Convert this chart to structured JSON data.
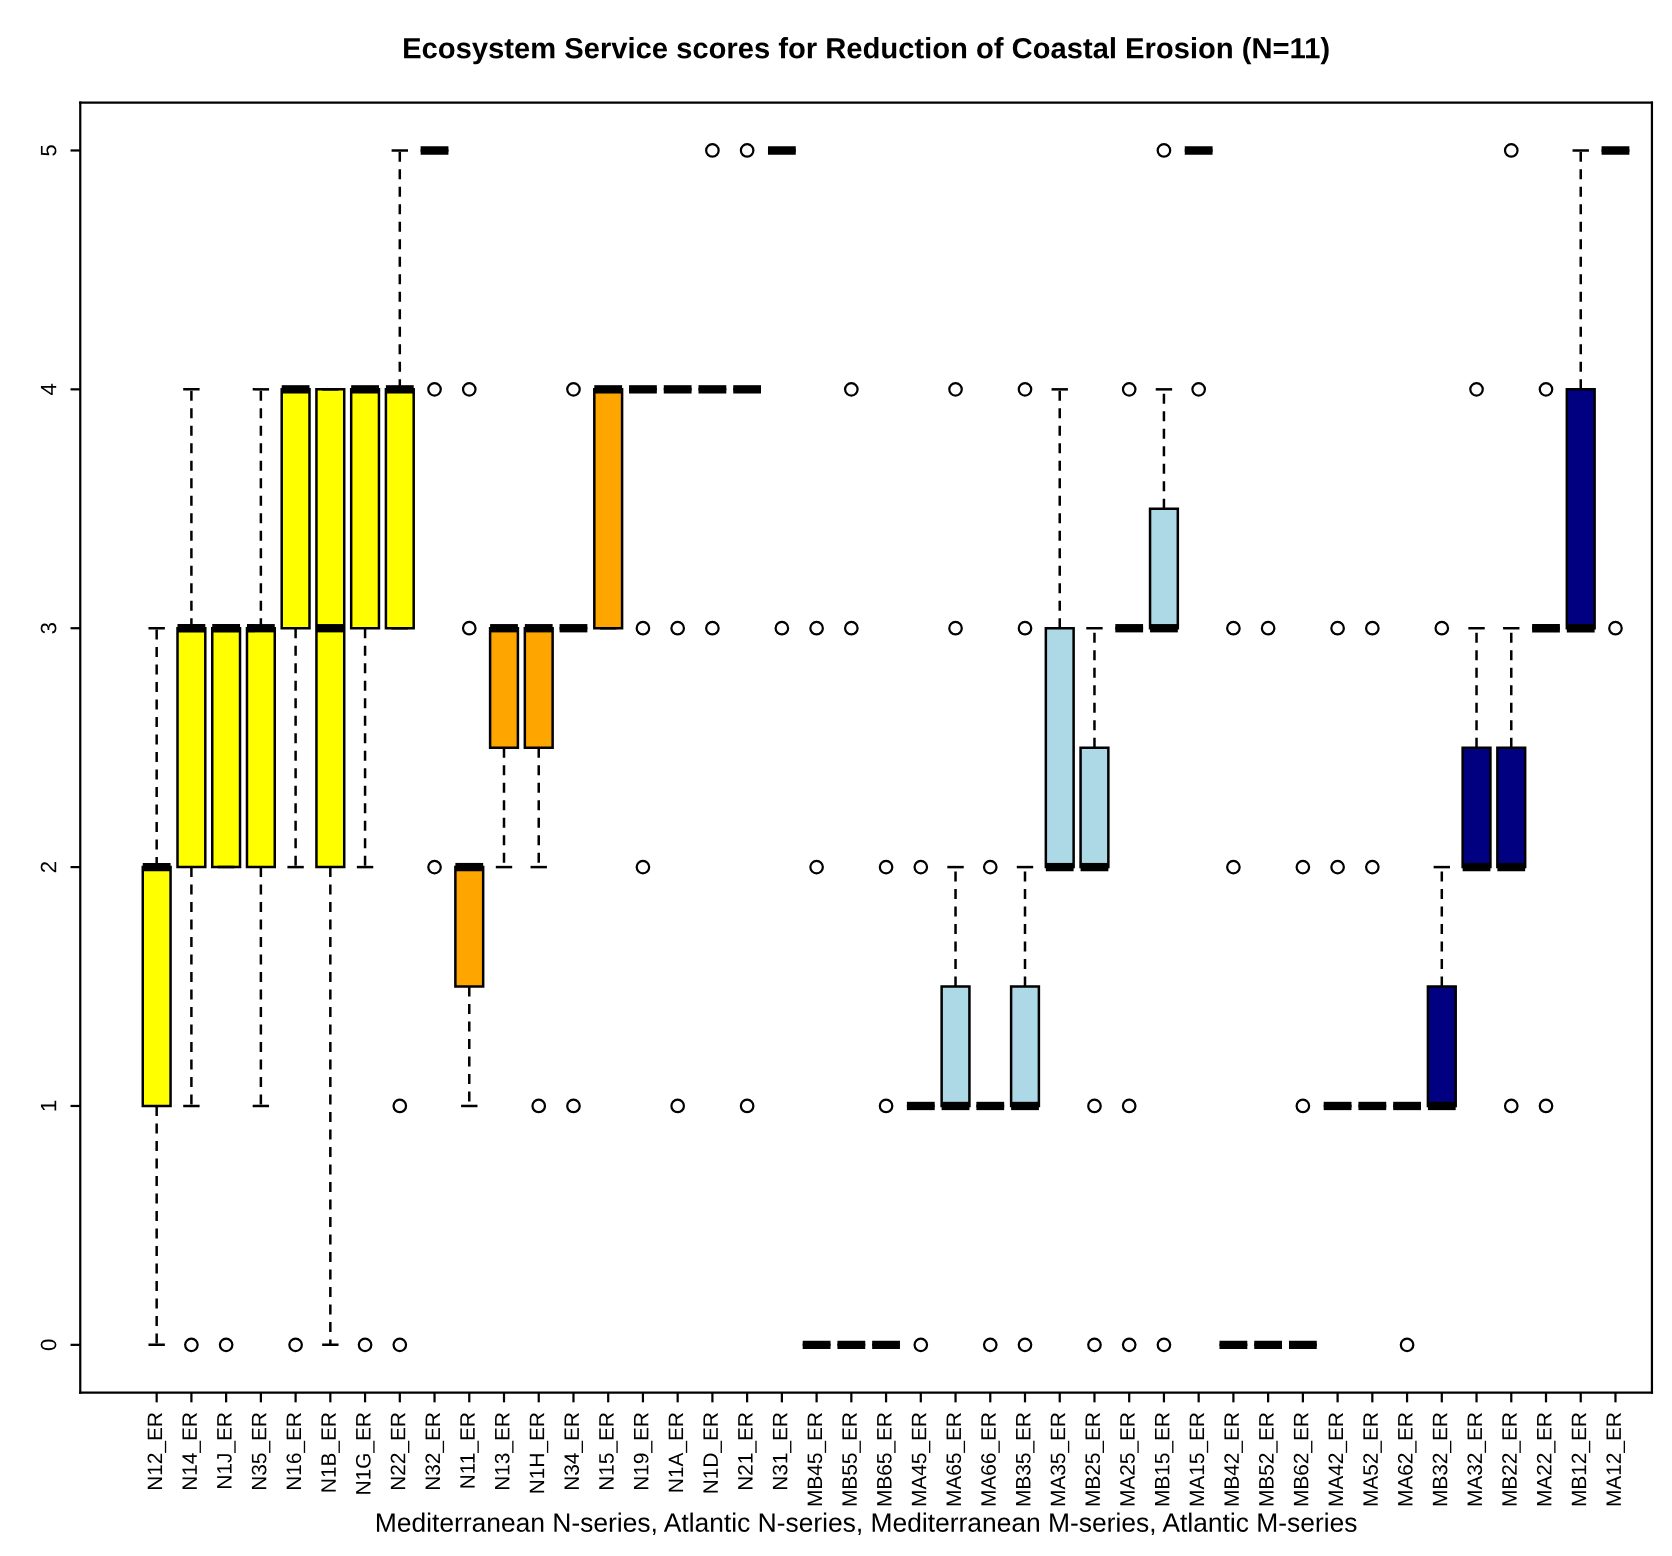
{
  "chart_data": {
    "type": "box",
    "title": "Ecosystem Service scores for Reduction of Coastal Erosion (N=11)",
    "xlabel": "Mediterranean N-series, Atlantic N-series, Mediterranean M-series, Atlantic M-series",
    "categories": [
      "N12_ER",
      "N14_ER",
      "N1J_ER",
      "N35_ER",
      "N16_ER",
      "N1B_ER",
      "N1G_ER",
      "N22_ER",
      "N32_ER",
      "N11_ER",
      "N13_ER",
      "N1H_ER",
      "N34_ER",
      "N15_ER",
      "N19_ER",
      "N1A_ER",
      "N1D_ER",
      "N21_ER",
      "N31_ER",
      "MB45_ER",
      "MB55_ER",
      "MB65_ER",
      "MA45_ER",
      "MA65_ER",
      "MA66_ER",
      "MB35_ER",
      "MA35_ER",
      "MB25_ER",
      "MA25_ER",
      "MB15_ER",
      "MA15_ER",
      "MB42_ER",
      "MB52_ER",
      "MB62_ER",
      "MA42_ER",
      "MA52_ER",
      "MA62_ER",
      "MB32_ER",
      "MA32_ER",
      "MB22_ER",
      "MA22_ER",
      "MB12_ER",
      "MA12_ER"
    ],
    "boxes": [
      {
        "low": 0,
        "q1": 1,
        "median": 2,
        "q3": 2,
        "high": 3
      },
      {
        "low": 1,
        "q1": 2,
        "median": 3,
        "q3": 3,
        "high": 4,
        "outliers": [
          0
        ]
      },
      {
        "low": 2,
        "q1": 2,
        "median": 3,
        "q3": 3,
        "high": 3,
        "outliers": [
          0
        ]
      },
      {
        "low": 1,
        "q1": 2,
        "median": 3,
        "q3": 3,
        "high": 4
      },
      {
        "low": 2,
        "q1": 3,
        "median": 4,
        "q3": 4,
        "high": 4,
        "outliers": [
          0
        ]
      },
      {
        "low": 0,
        "q1": 2,
        "median": 3,
        "q3": 4,
        "high": 4
      },
      {
        "low": 2,
        "q1": 3,
        "median": 4,
        "q3": 4,
        "high": 4,
        "outliers": [
          0
        ]
      },
      {
        "low": 3,
        "q1": 3,
        "median": 4,
        "q3": 4,
        "high": 5,
        "outliers": [
          1,
          0
        ]
      },
      {
        "low": 5,
        "q1": 5,
        "median": 5,
        "q3": 5,
        "high": 5,
        "outliers": [
          4,
          2
        ]
      },
      {
        "low": 1,
        "q1": 1.5,
        "median": 2,
        "q3": 2,
        "high": 2,
        "outliers": [
          4,
          3
        ]
      },
      {
        "low": 2,
        "q1": 2.5,
        "median": 3,
        "q3": 3,
        "high": 3
      },
      {
        "low": 2,
        "q1": 2.5,
        "median": 3,
        "q3": 3,
        "high": 3,
        "outliers": [
          1
        ]
      },
      {
        "low": 3,
        "q1": 3,
        "median": 3,
        "q3": 3,
        "high": 3,
        "outliers": [
          4,
          1
        ]
      },
      {
        "low": 3,
        "q1": 3,
        "median": 4,
        "q3": 4,
        "high": 4
      },
      {
        "low": 4,
        "q1": 4,
        "median": 4,
        "q3": 4,
        "high": 4,
        "outliers": [
          3,
          2
        ]
      },
      {
        "low": 4,
        "q1": 4,
        "median": 4,
        "q3": 4,
        "high": 4,
        "outliers": [
          3,
          1
        ]
      },
      {
        "low": 4,
        "q1": 4,
        "median": 4,
        "q3": 4,
        "high": 4,
        "outliers": [
          5,
          3
        ]
      },
      {
        "low": 4,
        "q1": 4,
        "median": 4,
        "q3": 4,
        "high": 4,
        "outliers": [
          5,
          1
        ]
      },
      {
        "low": 5,
        "q1": 5,
        "median": 5,
        "q3": 5,
        "high": 5,
        "outliers": [
          3
        ]
      },
      {
        "low": 0,
        "q1": 0,
        "median": 0,
        "q3": 0,
        "high": 0,
        "outliers": [
          3,
          2
        ]
      },
      {
        "low": 0,
        "q1": 0,
        "median": 0,
        "q3": 0,
        "high": 0,
        "outliers": [
          4,
          3
        ]
      },
      {
        "low": 0,
        "q1": 0,
        "median": 0,
        "q3": 0,
        "high": 0,
        "outliers": [
          2,
          1
        ]
      },
      {
        "low": 1,
        "q1": 1,
        "median": 1,
        "q3": 1,
        "high": 1,
        "outliers": [
          2,
          0
        ]
      },
      {
        "low": 1,
        "q1": 1,
        "median": 1,
        "q3": 1.5,
        "high": 2,
        "outliers": [
          4,
          3
        ]
      },
      {
        "low": 1,
        "q1": 1,
        "median": 1,
        "q3": 1,
        "high": 1,
        "outliers": [
          2,
          0
        ]
      },
      {
        "low": 1,
        "q1": 1,
        "median": 1,
        "q3": 1.5,
        "high": 2,
        "outliers": [
          4,
          3,
          0
        ]
      },
      {
        "low": 2,
        "q1": 2,
        "median": 2,
        "q3": 3,
        "high": 4
      },
      {
        "low": 2,
        "q1": 2,
        "median": 2,
        "q3": 2.5,
        "high": 3,
        "outliers": [
          1,
          0
        ]
      },
      {
        "low": 3,
        "q1": 3,
        "median": 3,
        "q3": 3,
        "high": 3,
        "outliers": [
          4,
          1,
          0
        ]
      },
      {
        "low": 3,
        "q1": 3,
        "median": 3,
        "q3": 3.5,
        "high": 4,
        "outliers": [
          5,
          0
        ]
      },
      {
        "low": 5,
        "q1": 5,
        "median": 5,
        "q3": 5,
        "high": 5,
        "outliers": [
          4
        ]
      },
      {
        "low": 0,
        "q1": 0,
        "median": 0,
        "q3": 0,
        "high": 0,
        "outliers": [
          3,
          2
        ]
      },
      {
        "low": 0,
        "q1": 0,
        "median": 0,
        "q3": 0,
        "high": 0,
        "outliers": [
          3
        ]
      },
      {
        "low": 0,
        "q1": 0,
        "median": 0,
        "q3": 0,
        "high": 0,
        "outliers": [
          2,
          1
        ]
      },
      {
        "low": 1,
        "q1": 1,
        "median": 1,
        "q3": 1,
        "high": 1,
        "outliers": [
          3,
          2
        ]
      },
      {
        "low": 1,
        "q1": 1,
        "median": 1,
        "q3": 1,
        "high": 1,
        "outliers": [
          3,
          2
        ]
      },
      {
        "low": 1,
        "q1": 1,
        "median": 1,
        "q3": 1,
        "high": 1,
        "outliers": [
          0
        ]
      },
      {
        "low": 1,
        "q1": 1,
        "median": 1,
        "q3": 1.5,
        "high": 2,
        "outliers": [
          3
        ]
      },
      {
        "low": 2,
        "q1": 2,
        "median": 2,
        "q3": 2.5,
        "high": 3,
        "outliers": [
          4
        ]
      },
      {
        "low": 2,
        "q1": 2,
        "median": 2,
        "q3": 2.5,
        "high": 3,
        "outliers": [
          5,
          1
        ]
      },
      {
        "low": 3,
        "q1": 3,
        "median": 3,
        "q3": 3,
        "high": 3,
        "outliers": [
          4,
          1
        ]
      },
      {
        "low": 3,
        "q1": 3,
        "median": 3,
        "q3": 4,
        "high": 5
      },
      {
        "low": 5,
        "q1": 5,
        "median": 5,
        "q3": 5,
        "high": 5,
        "outliers": [
          3
        ]
      }
    ],
    "colors": [
      "#ffff00",
      "#ffff00",
      "#ffff00",
      "#ffff00",
      "#ffff00",
      "#ffff00",
      "#ffff00",
      "#ffff00",
      null,
      "#ffa500",
      "#ffa500",
      "#ffa500",
      null,
      "#ffa500",
      null,
      null,
      null,
      null,
      null,
      null,
      null,
      null,
      null,
      "#add8e6",
      null,
      "#add8e6",
      "#add8e6",
      "#add8e6",
      null,
      "#add8e6",
      null,
      null,
      null,
      null,
      null,
      null,
      null,
      "#000080",
      "#000080",
      "#000080",
      null,
      "#000080",
      null
    ],
    "ylim": [
      -0.2,
      5.2
    ],
    "yticks": [
      0,
      1,
      2,
      3,
      4,
      5
    ],
    "grid": false
  }
}
